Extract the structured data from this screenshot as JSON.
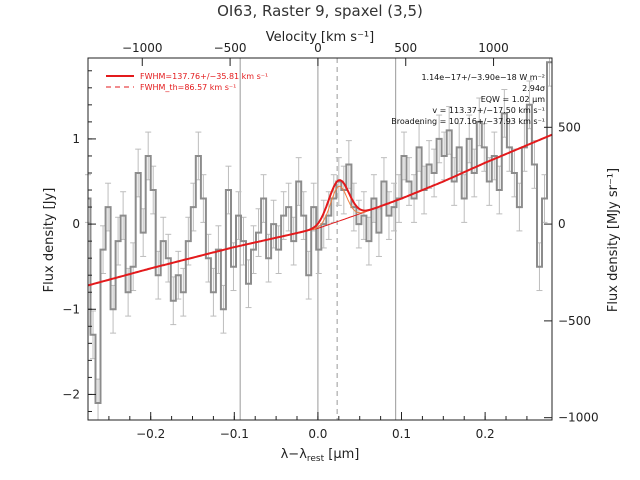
{
  "chart_data": {
    "type": "line",
    "title": "OI63, Raster 9, spaxel (3,5)",
    "xlabel_main": "λ−λ",
    "xlabel_sub": "rest",
    "xlabel_unit": " [μm]",
    "x2label": "Velocity [km s⁻¹]",
    "ylabel": "Flux density [Jy]",
    "y2label": "Flux density [MJy sr⁻¹]",
    "xlim": [
      -0.275,
      0.28
    ],
    "ylim": [
      -2.3,
      1.95
    ],
    "y2_per_y": 440,
    "x2_per_x": 4760,
    "x_ticks": [
      -0.2,
      -0.1,
      0.0,
      0.1,
      0.2
    ],
    "x_tick_labels": [
      "−0.2",
      "−0.1",
      "0.0",
      "0.1",
      "0.2"
    ],
    "y_ticks": [
      -2,
      -1,
      0,
      1
    ],
    "y_tick_labels": [
      "−2",
      "−1",
      "0",
      "1"
    ],
    "x2_ticks": [
      -1000,
      -500,
      0,
      500,
      1000
    ],
    "x2_tick_labels": [
      "−1000",
      "−500",
      "0",
      "500",
      "1000"
    ],
    "y2_ticks": [
      -1000,
      -500,
      0,
      500
    ],
    "y2_tick_labels": [
      "−1000",
      "−500",
      "0",
      "500"
    ],
    "vlines_solid": [
      -0.093,
      0.0,
      0.093
    ],
    "vline_dashed": 0.023,
    "spectrum": {
      "x": [
        -0.275,
        -0.269,
        -0.263,
        -0.257,
        -0.251,
        -0.245,
        -0.239,
        -0.233,
        -0.227,
        -0.221,
        -0.215,
        -0.209,
        -0.203,
        -0.197,
        -0.191,
        -0.185,
        -0.179,
        -0.173,
        -0.167,
        -0.161,
        -0.155,
        -0.149,
        -0.143,
        -0.137,
        -0.131,
        -0.125,
        -0.119,
        -0.113,
        -0.107,
        -0.101,
        -0.095,
        -0.089,
        -0.083,
        -0.077,
        -0.071,
        -0.065,
        -0.059,
        -0.053,
        -0.047,
        -0.041,
        -0.035,
        -0.029,
        -0.023,
        -0.017,
        -0.011,
        -0.005,
        0.001,
        0.007,
        0.013,
        0.019,
        0.025,
        0.031,
        0.037,
        0.043,
        0.049,
        0.055,
        0.061,
        0.067,
        0.073,
        0.079,
        0.085,
        0.091,
        0.097,
        0.103,
        0.109,
        0.115,
        0.121,
        0.127,
        0.133,
        0.139,
        0.145,
        0.151,
        0.157,
        0.163,
        0.169,
        0.175,
        0.181,
        0.187,
        0.193,
        0.199,
        0.205,
        0.211,
        0.217,
        0.223,
        0.229,
        0.235,
        0.241,
        0.247,
        0.253,
        0.259,
        0.265,
        0.271,
        0.277
      ],
      "y": [
        0.3,
        -1.3,
        -2.1,
        -0.3,
        0.2,
        -1.0,
        -0.2,
        0.1,
        -0.8,
        -0.5,
        0.6,
        -0.1,
        0.8,
        0.4,
        -0.6,
        -0.2,
        -0.4,
        -0.9,
        -0.6,
        -0.8,
        -0.2,
        0.2,
        0.8,
        0.3,
        -0.4,
        -0.8,
        -0.3,
        -1.0,
        0.4,
        -0.5,
        0.1,
        -0.2,
        -0.7,
        -0.3,
        -0.1,
        0.3,
        -0.4,
        0.0,
        -0.3,
        0.1,
        0.2,
        -0.2,
        0.5,
        0.1,
        -0.6,
        0.2,
        -0.3,
        0.0,
        0.1,
        0.3,
        0.5,
        0.4,
        0.7,
        0.2,
        0.0,
        0.1,
        -0.2,
        0.3,
        -0.1,
        0.5,
        0.1,
        0.2,
        0.3,
        0.8,
        0.5,
        0.3,
        0.9,
        0.4,
        0.7,
        0.6,
        1.0,
        0.8,
        1.1,
        0.5,
        0.9,
        0.3,
        1.0,
        0.6,
        1.2,
        0.9,
        0.5,
        0.8,
        0.4,
        1.3,
        0.9,
        0.6,
        0.2,
        0.9,
        1.4,
        0.7,
        -0.5,
        0.3,
        1.9
      ],
      "err": 0.28
    },
    "continuum_fit": {
      "x": [
        -0.275,
        -0.2,
        -0.1,
        0.0,
        0.05,
        0.1,
        0.15,
        0.2,
        0.28
      ],
      "y": [
        -0.72,
        -0.52,
        -0.27,
        -0.05,
        0.12,
        0.3,
        0.5,
        0.72,
        1.05
      ]
    },
    "gauss_fit": {
      "center": 0.025,
      "amplitude": 0.48,
      "sigma": 0.012
    },
    "legend": [
      {
        "label": "FWHM=137.76+/−35.81 km s⁻¹",
        "style": "solid",
        "color": "#e31a1c"
      },
      {
        "label": "FWHM_th=86.57 km s⁻¹",
        "style": "dashed",
        "color": "#e31a1c"
      }
    ],
    "annotations": [
      "1.14e−17+/−3.90e−18 W m⁻²",
      "2.94σ",
      "EQW = 1.02 μm",
      "v = 113.37+/−17.50 km s⁻¹",
      "Broadening = 107.16+/−37.93 km s⁻¹"
    ],
    "colors": {
      "spectrum": "#8c8c8c",
      "fit": "#e31a1c",
      "axes": "#222222",
      "vline": "#9a9a9a"
    }
  }
}
